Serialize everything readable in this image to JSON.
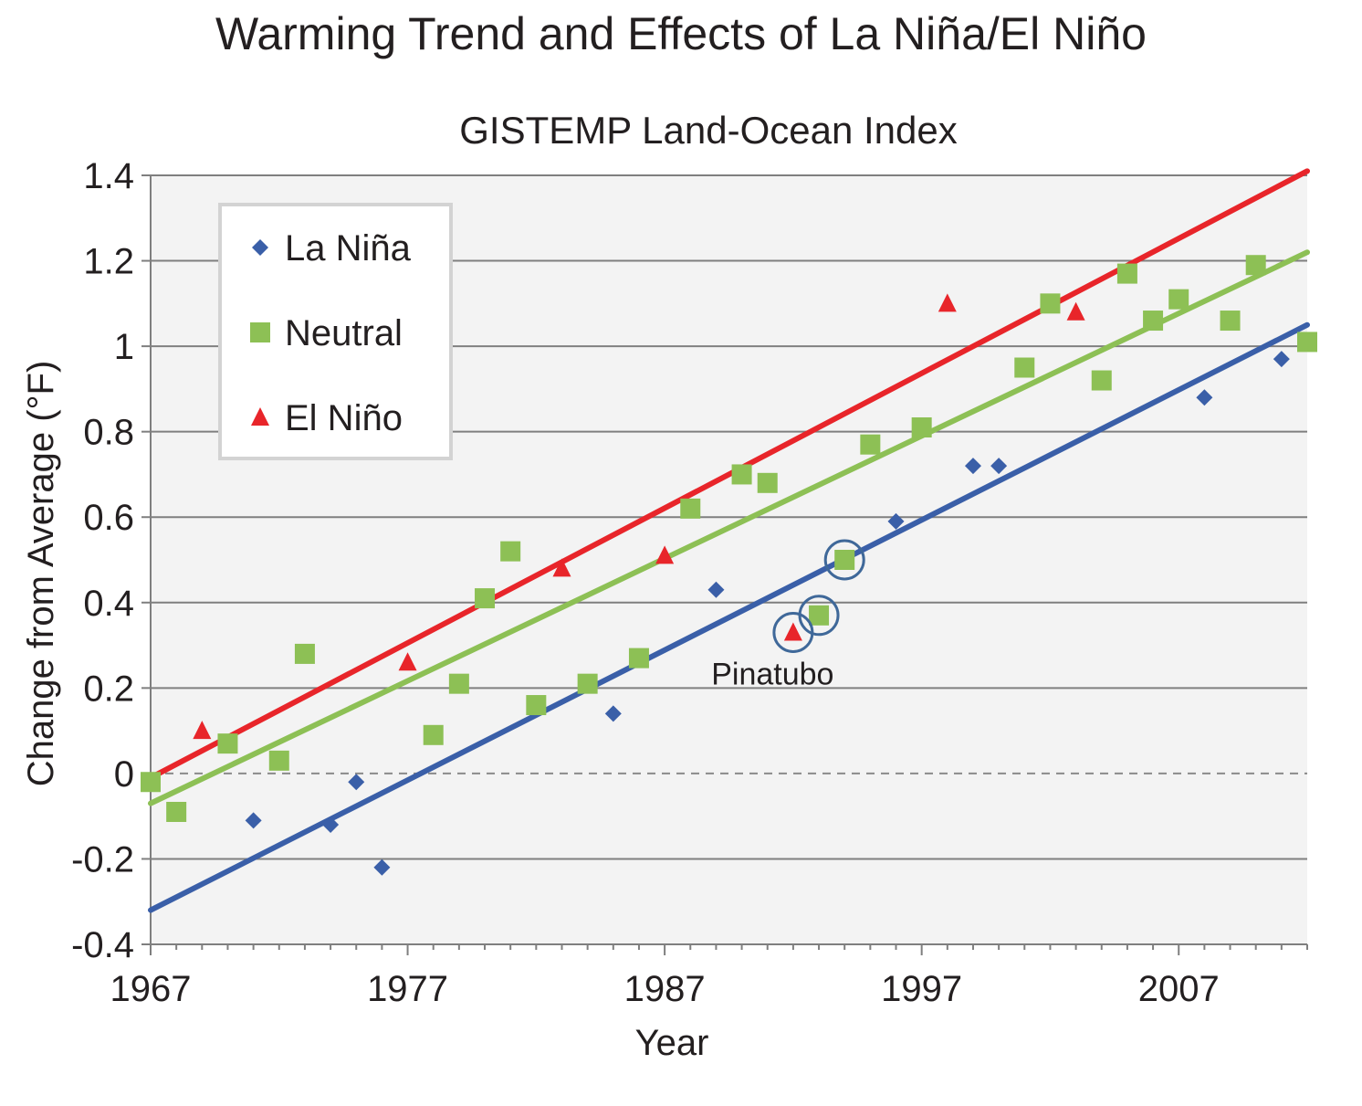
{
  "chart_data": {
    "type": "scatter",
    "title": "Warming Trend and Effects of La Niña/El Niño",
    "subtitle": "GISTEMP Land-Ocean Index",
    "xlabel": "Year",
    "ylabel": "Change from Average (°F)",
    "xlim": [
      1967,
      2012
    ],
    "ylim": [
      -0.4,
      1.4
    ],
    "x_ticks": [
      1967,
      1977,
      1987,
      1997,
      2007
    ],
    "x_tick_labels": [
      "1967",
      "1977",
      "1987",
      "1997",
      "2007"
    ],
    "y_ticks": [
      -0.4,
      -0.2,
      0,
      0.2,
      0.4,
      0.6,
      0.8,
      1,
      1.2,
      1.4
    ],
    "y_tick_labels": [
      "-0.4",
      "-0.2",
      "0",
      "0.2",
      "0.4",
      "0.6",
      "0.8",
      "1",
      "1.2",
      "1.4"
    ],
    "grid": true,
    "zero_line": "dashed",
    "legend_position": "top-left",
    "series": [
      {
        "name": "La Niña",
        "marker": "diamond",
        "color": "#3a5fa8",
        "points": [
          {
            "x": 1971,
            "y": -0.11
          },
          {
            "x": 1974,
            "y": -0.12
          },
          {
            "x": 1975,
            "y": -0.02
          },
          {
            "x": 1976,
            "y": -0.22
          },
          {
            "x": 1985,
            "y": 0.14
          },
          {
            "x": 1989,
            "y": 0.43
          },
          {
            "x": 1996,
            "y": 0.59
          },
          {
            "x": 1999,
            "y": 0.72
          },
          {
            "x": 2000,
            "y": 0.72
          },
          {
            "x": 2008,
            "y": 0.88
          },
          {
            "x": 2011,
            "y": 0.97
          }
        ],
        "trend": {
          "x": [
            1967,
            2012
          ],
          "y": [
            -0.32,
            1.05
          ]
        }
      },
      {
        "name": "Neutral",
        "marker": "square",
        "color": "#8dc055",
        "points": [
          {
            "x": 1967,
            "y": -0.02
          },
          {
            "x": 1968,
            "y": -0.09
          },
          {
            "x": 1970,
            "y": 0.07
          },
          {
            "x": 1972,
            "y": 0.03
          },
          {
            "x": 1973,
            "y": 0.28
          },
          {
            "x": 1978,
            "y": 0.09
          },
          {
            "x": 1979,
            "y": 0.21
          },
          {
            "x": 1980,
            "y": 0.41
          },
          {
            "x": 1981,
            "y": 0.52
          },
          {
            "x": 1982,
            "y": 0.16
          },
          {
            "x": 1984,
            "y": 0.21
          },
          {
            "x": 1986,
            "y": 0.27
          },
          {
            "x": 1988,
            "y": 0.62
          },
          {
            "x": 1990,
            "y": 0.7
          },
          {
            "x": 1991,
            "y": 0.68
          },
          {
            "x": 1993,
            "y": 0.37
          },
          {
            "x": 1994,
            "y": 0.5
          },
          {
            "x": 1995,
            "y": 0.77
          },
          {
            "x": 1997,
            "y": 0.81
          },
          {
            "x": 2001,
            "y": 0.95
          },
          {
            "x": 2002,
            "y": 1.1
          },
          {
            "x": 2004,
            "y": 0.92
          },
          {
            "x": 2005,
            "y": 1.17
          },
          {
            "x": 2006,
            "y": 1.06
          },
          {
            "x": 2007,
            "y": 1.11
          },
          {
            "x": 2009,
            "y": 1.06
          },
          {
            "x": 2010,
            "y": 1.19
          },
          {
            "x": 2012,
            "y": 1.01
          }
        ],
        "trend": {
          "x": [
            1967,
            2012
          ],
          "y": [
            -0.07,
            1.22
          ]
        }
      },
      {
        "name": "El Niño",
        "marker": "triangle",
        "color": "#e8252a",
        "points": [
          {
            "x": 1969,
            "y": 0.1
          },
          {
            "x": 1977,
            "y": 0.26
          },
          {
            "x": 1983,
            "y": 0.48
          },
          {
            "x": 1987,
            "y": 0.51
          },
          {
            "x": 1992,
            "y": 0.33
          },
          {
            "x": 1998,
            "y": 1.1
          },
          {
            "x": 2003,
            "y": 1.08
          }
        ],
        "trend": {
          "x": [
            1967,
            2012
          ],
          "y": [
            -0.01,
            1.41
          ]
        }
      }
    ],
    "annotations": [
      {
        "text": "Pinatubo",
        "x": 1991.2,
        "y": 0.2,
        "circled_points": [
          {
            "x": 1992,
            "y": 0.33
          },
          {
            "x": 1993,
            "y": 0.37
          },
          {
            "x": 1994,
            "y": 0.5
          }
        ]
      }
    ]
  }
}
